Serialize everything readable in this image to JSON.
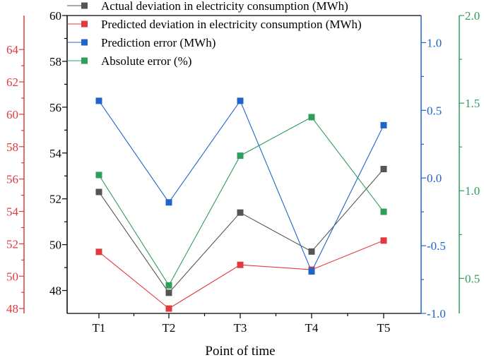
{
  "chart_data": {
    "type": "line",
    "title": "",
    "xlabel": "Point of time",
    "categories": [
      "T1",
      "T2",
      "T3",
      "T4",
      "T5"
    ],
    "axes": {
      "outer_left": {
        "color": "#e0393e",
        "ylim": [
          47.7,
          66.1
        ],
        "ticks": [
          48,
          50,
          52,
          54,
          56,
          58,
          60,
          62,
          64
        ],
        "tick_labels": [
          "48",
          "50",
          "52",
          "54",
          "56",
          "58",
          "60",
          "62",
          "64"
        ]
      },
      "inner_left": {
        "color": "#000000",
        "ylim": [
          47.0,
          60.0
        ],
        "ticks": [
          48,
          50,
          52,
          54,
          56,
          58,
          60
        ],
        "tick_labels": [
          "48",
          "50",
          "52",
          "54",
          "56",
          "58",
          "60"
        ]
      },
      "inner_right": {
        "color": "#1f64c8",
        "ylim": [
          -1.0,
          1.2
        ],
        "ticks": [
          -1.0,
          -0.5,
          0.0,
          0.5,
          1.0
        ],
        "tick_labels": [
          "-1.0",
          "-0.5",
          "0.0",
          "0.5",
          "1.0"
        ]
      },
      "outer_right": {
        "color": "#2f9e5b",
        "ylim": [
          0.3,
          2.0
        ],
        "ticks": [
          0.5,
          1.0,
          1.5,
          2.0
        ],
        "tick_labels": [
          "0.5",
          "1.0",
          "1.5",
          "2.0"
        ]
      }
    },
    "series": [
      {
        "name": "Actual deviation in electricity consumption (MWh)",
        "axis": "inner_left",
        "color": "#555555",
        "values": [
          52.3,
          47.9,
          51.4,
          49.7,
          53.3
        ]
      },
      {
        "name": "Predicted deviation in electricity consumption (MWh)",
        "axis": "outer_left",
        "color": "#e0393e",
        "values": [
          51.5,
          48.0,
          50.7,
          50.4,
          52.2
        ]
      },
      {
        "name": "Prediction error (MWh)",
        "axis": "inner_right",
        "color": "#1f64c8",
        "values": [
          0.57,
          -0.18,
          0.57,
          -0.69,
          0.39
        ]
      },
      {
        "name": "Absolute error (%)",
        "axis": "outer_right",
        "color": "#2f9e5b",
        "values": [
          1.09,
          0.46,
          1.2,
          1.42,
          0.88
        ]
      }
    ],
    "legend_position": "top-center"
  }
}
